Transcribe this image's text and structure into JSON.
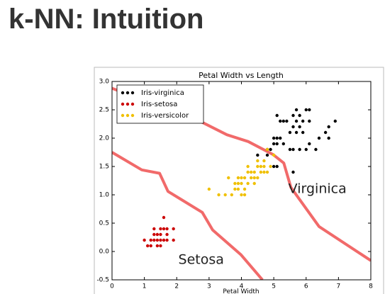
{
  "heading": "k-NN: Intuition",
  "chart_data": {
    "type": "scatter",
    "title": "Petal Width vs Length",
    "x_label": "Petal Width",
    "xlim": [
      0,
      8
    ],
    "ylim": [
      -0.5,
      3.0
    ],
    "xticks": [
      0,
      1,
      2,
      3,
      4,
      5,
      6,
      7,
      8
    ],
    "yticks": [
      -0.5,
      {
        "value": 0,
        "label": "0.0"
      },
      0.5,
      {
        "value": 1,
        "label": "1.0"
      },
      1.5,
      {
        "value": 2,
        "label": "2.0"
      },
      2.5,
      {
        "value": 3,
        "label": "3.0"
      }
    ],
    "legend": "upper left",
    "grid": false,
    "series": [
      {
        "name": "Iris-virginica",
        "color": "#000000",
        "x": [
          4.8,
          4.9,
          5.0,
          5.1,
          5.1,
          5.2,
          5.3,
          5.0,
          5.1,
          5.6,
          5.6,
          5.7,
          5.8,
          5.9,
          6.0,
          6.1,
          6.1,
          6.6,
          6.7,
          6.9,
          6.4,
          5.5,
          5.4,
          5.6,
          5.7,
          5.8,
          6.0,
          5.1,
          5.3,
          5.6,
          5.5,
          4.8,
          4.5,
          5.8,
          6.3,
          6.1,
          5.9,
          5.0,
          5.2,
          5.7,
          6.7
        ],
        "y": [
          1.8,
          1.8,
          2.0,
          1.9,
          2.0,
          2.0,
          1.9,
          1.5,
          1.5,
          1.4,
          1.8,
          2.1,
          1.8,
          2.1,
          1.8,
          1.9,
          2.3,
          2.1,
          2.2,
          2.3,
          2.0,
          2.1,
          2.3,
          2.4,
          2.5,
          2.2,
          2.5,
          2.4,
          2.3,
          2.2,
          1.8,
          1.7,
          1.7,
          2.4,
          1.8,
          2.5,
          2.3,
          1.9,
          2.3,
          2.3,
          2.0
        ]
      },
      {
        "name": "Iris-setosa",
        "color": "#cc0000",
        "x": [
          1.0,
          1.2,
          1.3,
          1.4,
          1.5,
          1.6,
          1.7,
          1.9,
          1.1,
          1.4,
          1.5,
          1.3,
          1.4,
          1.5,
          1.7,
          1.3,
          1.5,
          1.6,
          1.7,
          1.9,
          1.6,
          1.2
        ],
        "y": [
          0.2,
          0.2,
          0.2,
          0.2,
          0.2,
          0.2,
          0.2,
          0.2,
          0.1,
          0.1,
          0.1,
          0.3,
          0.3,
          0.3,
          0.3,
          0.4,
          0.4,
          0.4,
          0.4,
          0.4,
          0.6,
          0.1
        ]
      },
      {
        "name": "Iris-versicolor",
        "color": "#f0c000",
        "x": [
          3.0,
          3.3,
          3.5,
          3.7,
          3.9,
          4.0,
          4.1,
          3.9,
          4.0,
          4.2,
          4.4,
          3.6,
          3.9,
          4.0,
          4.1,
          4.3,
          4.4,
          4.5,
          4.7,
          4.4,
          4.6,
          4.8,
          4.5,
          4.7,
          4.9,
          4.2,
          4.5,
          4.7,
          4.8,
          3.8,
          4.6,
          5.0,
          4.1,
          4.3,
          3.8,
          4.2
        ],
        "y": [
          1.1,
          1.0,
          1.0,
          1.0,
          1.1,
          1.0,
          1.0,
          1.2,
          1.2,
          1.2,
          1.2,
          1.3,
          1.3,
          1.3,
          1.3,
          1.3,
          1.3,
          1.3,
          1.4,
          1.4,
          1.4,
          1.4,
          1.5,
          1.5,
          1.5,
          1.5,
          1.6,
          1.6,
          1.8,
          1.1,
          1.5,
          1.7,
          1.1,
          1.4,
          1.2,
          1.4
        ]
      }
    ],
    "boundaries": [
      {
        "x": [
          0,
          0.92,
          1.47,
          1.73,
          2.79,
          3.11,
          3.99,
          4.65
        ],
        "y": [
          1.75,
          1.44,
          1.38,
          1.06,
          0.69,
          0.38,
          -0.06,
          -0.5
        ]
      },
      {
        "x": [
          0,
          0.59,
          2.68,
          3.55,
          4.21,
          4.98,
          5.31,
          5.53,
          6.4,
          8
        ],
        "y": [
          2.88,
          2.75,
          2.31,
          2.06,
          1.94,
          1.71,
          1.56,
          1.13,
          0.44,
          -0.16
        ]
      }
    ],
    "boundary_color": "#f05a5a",
    "annotations": [
      {
        "text": "Virginica",
        "x": 5.45,
        "y": 1.1
      },
      {
        "text": "Setosa",
        "x": 2.05,
        "y": -0.15
      }
    ]
  }
}
